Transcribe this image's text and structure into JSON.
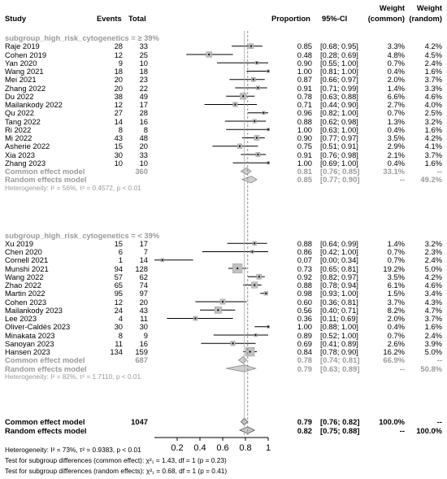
{
  "header": {
    "study": "Study",
    "events": "Events",
    "total": "Total",
    "proportion": "Proportion",
    "ci": "95%-CI",
    "weight_common": [
      "Weight",
      "(common)"
    ],
    "weight_random": [
      "Weight",
      "(random)"
    ]
  },
  "chart_data": {
    "type": "forest",
    "xlim": [
      0,
      1
    ],
    "ticks": [
      0.2,
      0.4,
      0.6,
      0.8,
      1
    ],
    "tick_labels": [
      "0.2",
      "0.4",
      "0.6",
      "0.8",
      "1"
    ],
    "subgroups": [
      {
        "label": "subgroup_high_risk_cytogenetics = ≥ 39%",
        "studies": [
          {
            "name": "Raje 2019",
            "events": "28",
            "total": "33",
            "est": 0.85,
            "lo": 0.68,
            "hi": 0.95,
            "ci": "[0.68; 0.95]",
            "wc": "3.3%",
            "wr": "4.2%"
          },
          {
            "name": "Cohen 2019",
            "events": "12",
            "total": "25",
            "est": 0.48,
            "lo": 0.28,
            "hi": 0.69,
            "ci": "[0.28; 0.69]",
            "wc": "4.8%",
            "wr": "4.5%"
          },
          {
            "name": "Yan 2020",
            "events": "9",
            "total": "10",
            "est": 0.9,
            "lo": 0.55,
            "hi": 1.0,
            "ci": "[0.55; 1.00]",
            "wc": "0.7%",
            "wr": "2.4%"
          },
          {
            "name": "Wang 2021",
            "events": "18",
            "total": "18",
            "est": 1.0,
            "lo": 0.81,
            "hi": 1.0,
            "ci": "[0.81; 1.00]",
            "wc": "0.4%",
            "wr": "1.6%"
          },
          {
            "name": "Mei 2021",
            "events": "20",
            "total": "23",
            "est": 0.87,
            "lo": 0.66,
            "hi": 0.97,
            "ci": "[0.66; 0.97]",
            "wc": "2.0%",
            "wr": "3.7%"
          },
          {
            "name": "Zhang 2022",
            "events": "20",
            "total": "22",
            "est": 0.91,
            "lo": 0.71,
            "hi": 0.99,
            "ci": "[0.71; 0.99]",
            "wc": "1.4%",
            "wr": "3.3%"
          },
          {
            "name": "Du 2022",
            "events": "38",
            "total": "49",
            "est": 0.78,
            "lo": 0.63,
            "hi": 0.88,
            "ci": "[0.63; 0.88]",
            "wc": "6.6%",
            "wr": "4.6%"
          },
          {
            "name": "Mailankody 2022",
            "events": "12",
            "total": "17",
            "est": 0.71,
            "lo": 0.44,
            "hi": 0.9,
            "ci": "[0.44; 0.90]",
            "wc": "2.7%",
            "wr": "4.0%"
          },
          {
            "name": "Qu 2022",
            "events": "27",
            "total": "28",
            "est": 0.96,
            "lo": 0.82,
            "hi": 1.0,
            "ci": "[0.82; 1.00]",
            "wc": "0.7%",
            "wr": "2.5%"
          },
          {
            "name": "Tang 2022",
            "events": "14",
            "total": "16",
            "est": 0.88,
            "lo": 0.62,
            "hi": 0.98,
            "ci": "[0.62; 0.98]",
            "wc": "1.3%",
            "wr": "3.2%"
          },
          {
            "name": "Ri 2022",
            "events": "8",
            "total": "8",
            "est": 1.0,
            "lo": 0.63,
            "hi": 1.0,
            "ci": "[0.63; 1.00]",
            "wc": "0.4%",
            "wr": "1.6%"
          },
          {
            "name": "Mi 2022",
            "events": "43",
            "total": "48",
            "est": 0.9,
            "lo": 0.77,
            "hi": 0.97,
            "ci": "[0.77; 0.97]",
            "wc": "3.5%",
            "wr": "4.2%"
          },
          {
            "name": "Asherie 2022",
            "events": "15",
            "total": "20",
            "est": 0.75,
            "lo": 0.51,
            "hi": 0.91,
            "ci": "[0.51; 0.91]",
            "wc": "2.9%",
            "wr": "4.1%"
          },
          {
            "name": "Xia 2023",
            "events": "30",
            "total": "33",
            "est": 0.91,
            "lo": 0.76,
            "hi": 0.98,
            "ci": "[0.76; 0.98]",
            "wc": "2.1%",
            "wr": "3.7%"
          },
          {
            "name": "Zhang 2023",
            "events": "10",
            "total": "10",
            "est": 1.0,
            "lo": 0.69,
            "hi": 1.0,
            "ci": "[0.69; 1.00]",
            "wc": "0.4%",
            "wr": "1.6%"
          }
        ],
        "common": {
          "label": "Common effect model",
          "total": "360",
          "est": 0.81,
          "lo": 0.76,
          "hi": 0.85,
          "ci": "[0.76; 0.85]",
          "wc": "33.1%",
          "wr": "--"
        },
        "random": {
          "label": "Random effects model",
          "est": 0.85,
          "lo": 0.77,
          "hi": 0.9,
          "ci": "[0.77; 0.90]",
          "wc": "--",
          "wr": "49.2%"
        },
        "het": "Heterogeneity: I² = 56%, τ² = 0.4572, p < 0.01"
      },
      {
        "label": "subgroup_high_risk_cytogenetics = < 39%",
        "studies": [
          {
            "name": "Xu 2019",
            "events": "15",
            "total": "17",
            "est": 0.88,
            "lo": 0.64,
            "hi": 0.99,
            "ci": "[0.64; 0.99]",
            "wc": "1.4%",
            "wr": "3.2%"
          },
          {
            "name": "Chen 2020",
            "events": "6",
            "total": "7",
            "est": 0.86,
            "lo": 0.42,
            "hi": 1.0,
            "ci": "[0.42; 1.00]",
            "wc": "0.7%",
            "wr": "2.3%"
          },
          {
            "name": "Cornell 2021",
            "events": "1",
            "total": "14",
            "est": 0.07,
            "lo": 0.0,
            "hi": 0.34,
            "ci": "[0.00; 0.34]",
            "wc": "0.7%",
            "wr": "2.4%"
          },
          {
            "name": "Munshi 2021",
            "events": "94",
            "total": "128",
            "est": 0.73,
            "lo": 0.65,
            "hi": 0.81,
            "ci": "[0.65; 0.81]",
            "wc": "19.2%",
            "wr": "5.0%"
          },
          {
            "name": "Wang 2022",
            "events": "57",
            "total": "62",
            "est": 0.92,
            "lo": 0.82,
            "hi": 0.97,
            "ci": "[0.82; 0.97]",
            "wc": "3.5%",
            "wr": "4.2%"
          },
          {
            "name": "Zhao 2022",
            "events": "65",
            "total": "74",
            "est": 0.88,
            "lo": 0.78,
            "hi": 0.94,
            "ci": "[0.78; 0.94]",
            "wc": "6.1%",
            "wr": "4.6%"
          },
          {
            "name": "Martin 2022",
            "events": "95",
            "total": "97",
            "est": 0.98,
            "lo": 0.93,
            "hi": 1.0,
            "ci": "[0.93; 1.00]",
            "wc": "1.5%",
            "wr": "3.4%"
          },
          {
            "name": "Cohen 2023",
            "events": "12",
            "total": "20",
            "est": 0.6,
            "lo": 0.36,
            "hi": 0.81,
            "ci": "[0.36; 0.81]",
            "wc": "3.7%",
            "wr": "4.3%"
          },
          {
            "name": "Mailankody 2023",
            "events": "24",
            "total": "43",
            "est": 0.56,
            "lo": 0.4,
            "hi": 0.71,
            "ci": "[0.40; 0.71]",
            "wc": "8.2%",
            "wr": "4.7%"
          },
          {
            "name": "Lee 2023",
            "events": "4",
            "total": "11",
            "est": 0.36,
            "lo": 0.11,
            "hi": 0.69,
            "ci": "[0.11; 0.69]",
            "wc": "2.0%",
            "wr": "3.7%"
          },
          {
            "name": "Oliver-Caldés 2023",
            "events": "30",
            "total": "30",
            "est": 1.0,
            "lo": 0.88,
            "hi": 1.0,
            "ci": "[0.88; 1.00]",
            "wc": "0.4%",
            "wr": "1.6%"
          },
          {
            "name": "Minakata 2023",
            "events": "8",
            "total": "9",
            "est": 0.89,
            "lo": 0.52,
            "hi": 1.0,
            "ci": "[0.52; 1.00]",
            "wc": "0.7%",
            "wr": "2.4%"
          },
          {
            "name": "Sanoyan 2023",
            "events": "11",
            "total": "16",
            "est": 0.69,
            "lo": 0.41,
            "hi": 0.89,
            "ci": "[0.41; 0.89]",
            "wc": "2.6%",
            "wr": "3.9%"
          },
          {
            "name": "Hansen 2023",
            "events": "134",
            "total": "159",
            "est": 0.84,
            "lo": 0.78,
            "hi": 0.9,
            "ci": "[0.78; 0.90]",
            "wc": "16.2%",
            "wr": "5.0%"
          }
        ],
        "common": {
          "label": "Common effect model",
          "total": "687",
          "est": 0.78,
          "lo": 0.74,
          "hi": 0.81,
          "ci": "[0.74; 0.81]",
          "wc": "66.9%",
          "wr": "--"
        },
        "random": {
          "label": "Random effects model",
          "est": 0.79,
          "lo": 0.63,
          "hi": 0.89,
          "ci": "[0.63; 0.89]",
          "wc": "--",
          "wr": "50.8%"
        },
        "het": "Heterogeneity: I² = 82%, τ² = 1.7110, p < 0.01"
      }
    ],
    "overall_common": {
      "label": "Common effect model",
      "total": "1047",
      "est": 0.79,
      "lo": 0.76,
      "hi": 0.82,
      "ci": "[0.76; 0.82]",
      "wc": "100.0%",
      "wr": "--"
    },
    "overall_random": {
      "label": "Random effects model",
      "est": 0.82,
      "lo": 0.75,
      "hi": 0.88,
      "ci": "[0.75; 0.88]",
      "wc": "--",
      "wr": "100.0%"
    },
    "footer": [
      "Heterogeneity: I² = 73%, τ² = 0.9383, p < 0.01",
      "Test for subgroup differences (common effect): χ²₁ = 1.43, df = 1 (p = 0.23)",
      "Test for subgroup differences (random effects): χ²₁ = 0.68, df = 1 (p = 0.41)"
    ]
  }
}
